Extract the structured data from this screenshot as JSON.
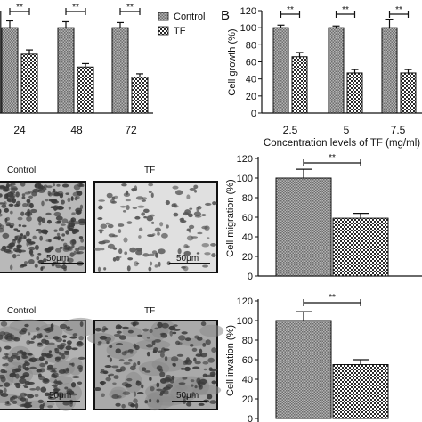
{
  "panel_b_letter": "B",
  "legend": {
    "control": "Control",
    "tf": "TF"
  },
  "micrograph_labels": {
    "control_top": "Control",
    "tf_top": "TF",
    "control_bottom": "Control",
    "tf_bottom": "TF",
    "scale_bar": "50μm"
  },
  "colors": {
    "control_fill": "#9a9a9a",
    "tf_fill": "checkered",
    "axis": "#111111"
  },
  "chart_data": [
    {
      "id": "panel-a",
      "type": "bar",
      "categories": [
        "24",
        "48",
        "72"
      ],
      "series": [
        {
          "name": "Control",
          "values": [
            100,
            100,
            100
          ],
          "errors": [
            8,
            7,
            6
          ]
        },
        {
          "name": "TF",
          "values": [
            69,
            54,
            42
          ],
          "errors": [
            5,
            4,
            4
          ]
        }
      ],
      "ylim": [
        0,
        120
      ],
      "significance": [
        "**",
        "**",
        "**"
      ]
    },
    {
      "id": "panel-b",
      "type": "bar",
      "categories": [
        "2.5",
        "5",
        "7.5"
      ],
      "series": [
        {
          "name": "Control",
          "values": [
            100,
            100,
            100
          ],
          "errors": [
            3,
            2,
            10
          ]
        },
        {
          "name": "TF",
          "values": [
            66,
            47,
            47
          ],
          "errors": [
            5,
            4,
            4
          ]
        }
      ],
      "ylim": [
        0,
        120
      ],
      "yticks": [
        0,
        20,
        40,
        60,
        80,
        100,
        120
      ],
      "ylabel": "Cell growth (%)",
      "xlabel": "Concentration levels of TF (mg/ml)",
      "significance": [
        "**",
        "**",
        "**"
      ]
    },
    {
      "id": "panel-c",
      "type": "bar",
      "categories": [
        "Control",
        "TF"
      ],
      "values": [
        100,
        59
      ],
      "errors": [
        9,
        5
      ],
      "ylim": [
        0,
        120
      ],
      "yticks": [
        0,
        20,
        40,
        60,
        80,
        100,
        120
      ],
      "ylabel": "Cell migration (%)",
      "significance": "**"
    },
    {
      "id": "panel-d",
      "type": "bar",
      "categories": [
        "Control",
        "TF"
      ],
      "values": [
        100,
        55
      ],
      "errors": [
        9,
        5
      ],
      "ylim": [
        0,
        120
      ],
      "yticks": [
        0,
        20,
        40,
        60,
        80,
        100,
        120
      ],
      "ylabel": "Cell invation (%)",
      "significance": "**"
    }
  ]
}
